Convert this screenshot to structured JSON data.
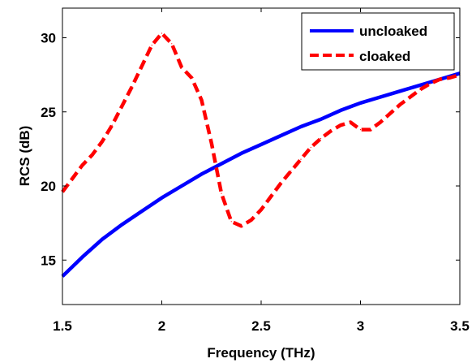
{
  "chart_data": {
    "type": "line",
    "title": "",
    "xlabel": "Frequency (THz)",
    "ylabel": "RCS (dB)",
    "xlim": [
      1.5,
      3.5
    ],
    "ylim": [
      12,
      32
    ],
    "xticks": [
      1.5,
      2,
      2.5,
      3,
      3.5
    ],
    "xtick_labels": [
      "1.5",
      "2",
      "2.5",
      "3",
      "3.5"
    ],
    "yticks": [
      15,
      20,
      25,
      30
    ],
    "ytick_labels": [
      "15",
      "20",
      "25",
      "30"
    ],
    "grid": false,
    "legend": "top-right",
    "series": [
      {
        "name": "uncloaked",
        "color": "#0000ff",
        "line_style": "solid",
        "x": [
          1.5,
          1.6,
          1.7,
          1.8,
          1.9,
          2.0,
          2.1,
          2.2,
          2.3,
          2.4,
          2.5,
          2.6,
          2.7,
          2.8,
          2.9,
          3.0,
          3.1,
          3.2,
          3.3,
          3.4,
          3.5
        ],
        "y": [
          13.9,
          15.2,
          16.4,
          17.4,
          18.3,
          19.2,
          20.0,
          20.8,
          21.5,
          22.2,
          22.8,
          23.4,
          24.0,
          24.5,
          25.1,
          25.6,
          26.0,
          26.4,
          26.8,
          27.2,
          27.6
        ]
      },
      {
        "name": "cloaked",
        "color": "#ff0000",
        "line_style": "dashed",
        "x": [
          1.5,
          1.55,
          1.6,
          1.65,
          1.7,
          1.75,
          1.8,
          1.85,
          1.9,
          1.95,
          2.0,
          2.05,
          2.1,
          2.15,
          2.2,
          2.25,
          2.3,
          2.35,
          2.4,
          2.45,
          2.5,
          2.55,
          2.6,
          2.65,
          2.7,
          2.75,
          2.8,
          2.85,
          2.9,
          2.95,
          3.0,
          3.05,
          3.1,
          3.15,
          3.2,
          3.25,
          3.3,
          3.35,
          3.4,
          3.45,
          3.5
        ],
        "y": [
          19.6,
          20.5,
          21.4,
          22.1,
          23.0,
          24.1,
          25.4,
          26.7,
          28.1,
          29.5,
          30.3,
          29.6,
          28.0,
          27.3,
          25.8,
          22.9,
          19.5,
          17.6,
          17.3,
          17.7,
          18.4,
          19.3,
          20.2,
          21.0,
          21.8,
          22.6,
          23.2,
          23.7,
          24.1,
          24.3,
          23.8,
          23.8,
          24.3,
          24.9,
          25.5,
          26.0,
          26.5,
          26.9,
          27.2,
          27.3,
          27.5
        ]
      }
    ]
  }
}
